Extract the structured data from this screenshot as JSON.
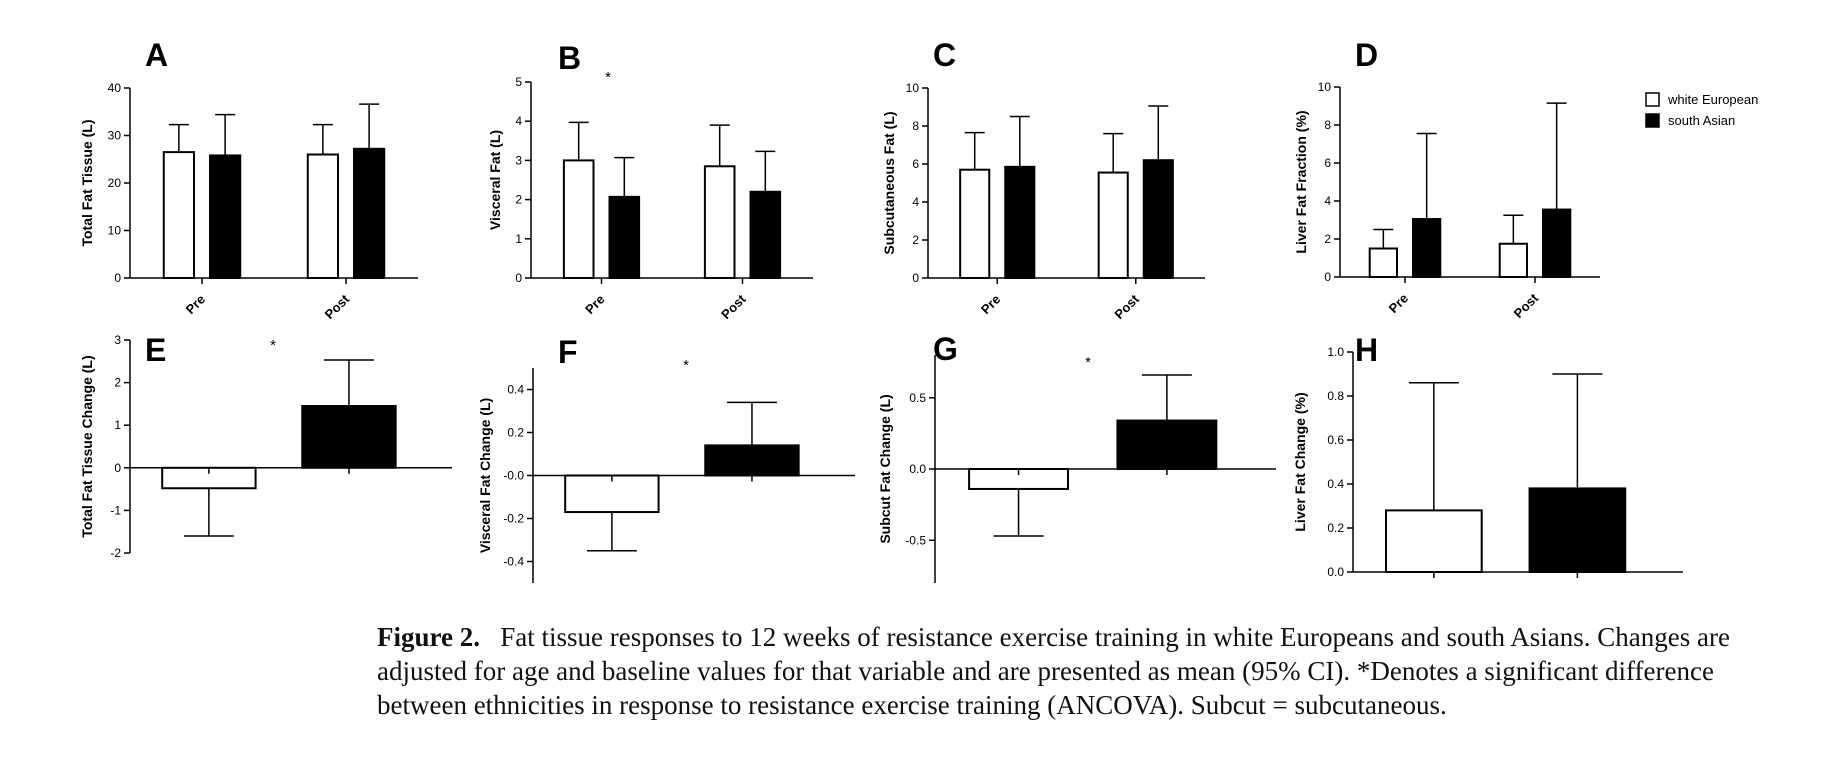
{
  "legend": [
    {
      "name": "white European",
      "color": "#ffffff"
    },
    {
      "name": "south Asian",
      "color": "#000000"
    }
  ],
  "caption": {
    "label": "Figure 2.",
    "text": "Fat tissue responses to 12 weeks of resistance exercise training in white Europeans and south Asians. Changes are adjusted for age and baseline values for that variable and are presented as mean (95% CI). *Denotes a significant difference between ethnicities in response to resistance exercise training (ANCOVA). Subcut = subcutaneous."
  },
  "chart_data": [
    {
      "panel": "A",
      "type": "bar",
      "ylabel": "Total Fat Tissue  (L)",
      "ylim": [
        0,
        40
      ],
      "yticks": [
        "0",
        "10",
        "20",
        "30",
        "40"
      ],
      "categories": [
        "Pre",
        "Post"
      ],
      "series": [
        {
          "name": "white European",
          "values": [
            26.5,
            26.0
          ],
          "err_upper": [
            32.3,
            32.3
          ]
        },
        {
          "name": "south Asian",
          "values": [
            25.8,
            27.2
          ],
          "err_upper": [
            34.4,
            36.6
          ]
        }
      ]
    },
    {
      "panel": "B",
      "type": "bar",
      "ylabel": "Visceral  Fat  (L)",
      "ylim": [
        0,
        5
      ],
      "yticks": [
        "0",
        "1",
        "2",
        "3",
        "4",
        "5"
      ],
      "categories": [
        "Pre",
        "Post"
      ],
      "annotation": "*",
      "series": [
        {
          "name": "white European",
          "values": [
            3.0,
            2.85
          ],
          "err_upper": [
            3.97,
            3.9
          ]
        },
        {
          "name": "south Asian",
          "values": [
            2.07,
            2.2
          ],
          "err_upper": [
            3.07,
            3.23
          ]
        }
      ]
    },
    {
      "panel": "C",
      "type": "bar",
      "ylabel": "Subcutaneous Fat (L)",
      "ylim": [
        0,
        10
      ],
      "yticks": [
        "0",
        "2",
        "4",
        "6",
        "8",
        "10"
      ],
      "categories": [
        "Pre",
        "Post"
      ],
      "series": [
        {
          "name": "white European",
          "values": [
            5.7,
            5.55
          ],
          "err_upper": [
            7.65,
            7.6
          ]
        },
        {
          "name": "south Asian",
          "values": [
            5.85,
            6.2
          ],
          "err_upper": [
            8.5,
            9.05
          ]
        }
      ]
    },
    {
      "panel": "D",
      "type": "bar",
      "ylabel": "Liver Fat Fraction  (%)",
      "ylim": [
        0,
        10
      ],
      "yticks": [
        "0",
        "2",
        "4",
        "6",
        "8",
        "10"
      ],
      "categories": [
        "Pre",
        "Post"
      ],
      "series": [
        {
          "name": "white European",
          "values": [
            1.5,
            1.75
          ],
          "err_upper": [
            2.5,
            3.25
          ]
        },
        {
          "name": "south Asian",
          "values": [
            3.05,
            3.55
          ],
          "err_upper": [
            7.55,
            9.15
          ]
        }
      ]
    },
    {
      "panel": "E",
      "type": "bar",
      "ylabel": "Total Fat Tissue Change  (L)",
      "ylim": [
        -2,
        3
      ],
      "yticks": [
        "-2",
        "-1",
        "0",
        "1",
        "2",
        "3"
      ],
      "categories": [
        "white European",
        "south Asian"
      ],
      "annotation": "*",
      "values": [
        -0.48,
        1.45
      ],
      "ci": [
        [
          -1.6,
          -0.48
        ],
        [
          1.45,
          2.53
        ]
      ]
    },
    {
      "panel": "F",
      "type": "bar",
      "ylabel": "Visceral  Fat  Change (L)",
      "ylim": [
        -0.5,
        0.5
      ],
      "yticks": [
        "-0.4",
        "-0.2",
        "-0.0",
        "0.2",
        "0.4"
      ],
      "categories": [
        "white European",
        "south Asian"
      ],
      "annotation": "*",
      "values": [
        -0.17,
        0.14
      ],
      "ci": [
        [
          -0.35,
          -0.17
        ],
        [
          0.14,
          0.34
        ]
      ]
    },
    {
      "panel": "G",
      "type": "bar",
      "ylabel": "Subcut Fat Change (L)",
      "ylim": [
        -0.8,
        0.8
      ],
      "yticks": [
        "-0.5",
        "0.0",
        "0.5"
      ],
      "categories": [
        "white European",
        "south Asian"
      ],
      "annotation": "*",
      "values": [
        -0.14,
        0.34
      ],
      "ci": [
        [
          -0.47,
          -0.14
        ],
        [
          0.34,
          0.66
        ]
      ]
    },
    {
      "panel": "H",
      "type": "bar",
      "ylabel": "Liver Fat  Change (%)",
      "ylim": [
        0,
        1.0
      ],
      "yticks": [
        "0.0",
        "0.2",
        "0.4",
        "0.6",
        "0.8",
        "1.0"
      ],
      "categories": [
        "white European",
        "south Asian"
      ],
      "values": [
        0.28,
        0.38
      ],
      "ci": [
        [
          0.28,
          0.86
        ],
        [
          0.38,
          0.9
        ]
      ]
    }
  ]
}
